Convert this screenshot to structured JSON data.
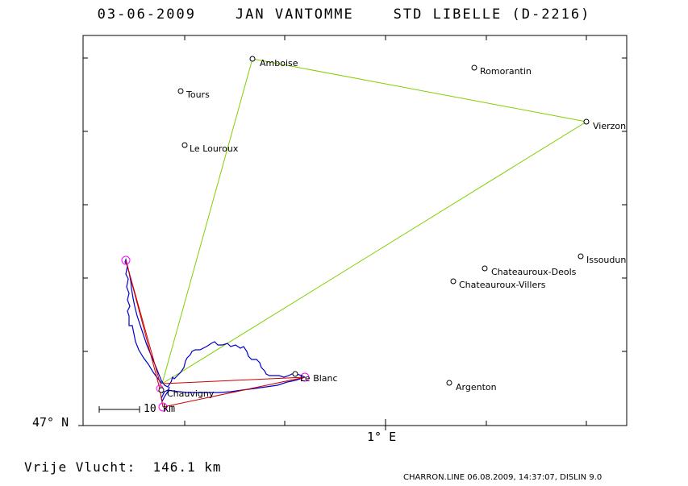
{
  "header": {
    "title": "03-06-2009    JAN VANTOMME    STD LIBELLE (D-2216)"
  },
  "axes": {
    "lat_label": "47° N",
    "lon_label": "1° E"
  },
  "scale_bar": {
    "label": "10 km"
  },
  "flight": {
    "distance_label": "Vrije Vlucht:  146.1 km"
  },
  "footer": {
    "text": "CHARRON.LINE 06.08.2009, 14:37:07, DISLIN 9.0"
  },
  "colors": {
    "frame": "#000000",
    "track": "#0000cc",
    "task": "#80d000",
    "scored_legs": "#cc0000",
    "turnpoint_marker": "#ff00ff"
  },
  "places": [
    {
      "id": "amboise",
      "name": "Amboise"
    },
    {
      "id": "romorantin",
      "name": "Romorantin"
    },
    {
      "id": "tours",
      "name": "Tours"
    },
    {
      "id": "vierzon",
      "name": "Vierzon"
    },
    {
      "id": "le-louroux",
      "name": "Le Louroux"
    },
    {
      "id": "issoudun",
      "name": "Issoudun"
    },
    {
      "id": "chateauroux-deols",
      "name": "Chateauroux-Deols"
    },
    {
      "id": "chateauroux-villers",
      "name": "Chateauroux-Villers"
    },
    {
      "id": "le-blanc",
      "name": "Le Blanc"
    },
    {
      "id": "argenton",
      "name": "Argenton"
    },
    {
      "id": "chauvigny",
      "name": "Chauvigny"
    }
  ]
}
